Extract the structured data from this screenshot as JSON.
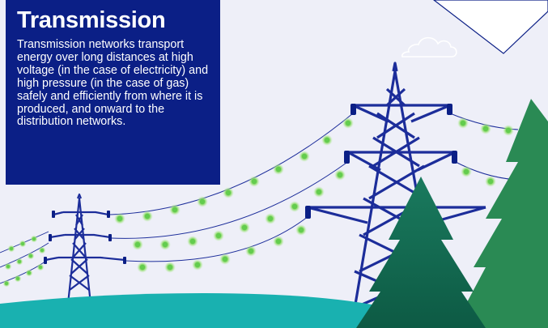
{
  "panel": {
    "title": "Transmission",
    "body": "Transmission networks transport energy over long distances at high voltage (in the case of electricity) and high pressure (in the case of gas) safely and efficiently from where it is produced, and onward to the distribution networks."
  },
  "colors": {
    "panel_background": "#0b1f86",
    "sky": "#eeeff8",
    "pylon": "#1c2d9a",
    "ground": "#19b1b0",
    "tree_light": "#2a8a54",
    "tree_dark": "#136a52",
    "energy_glow": "#8fdc6a"
  },
  "icons": {
    "cloud": "cloud-icon",
    "corner_badge": "corner-badge"
  }
}
